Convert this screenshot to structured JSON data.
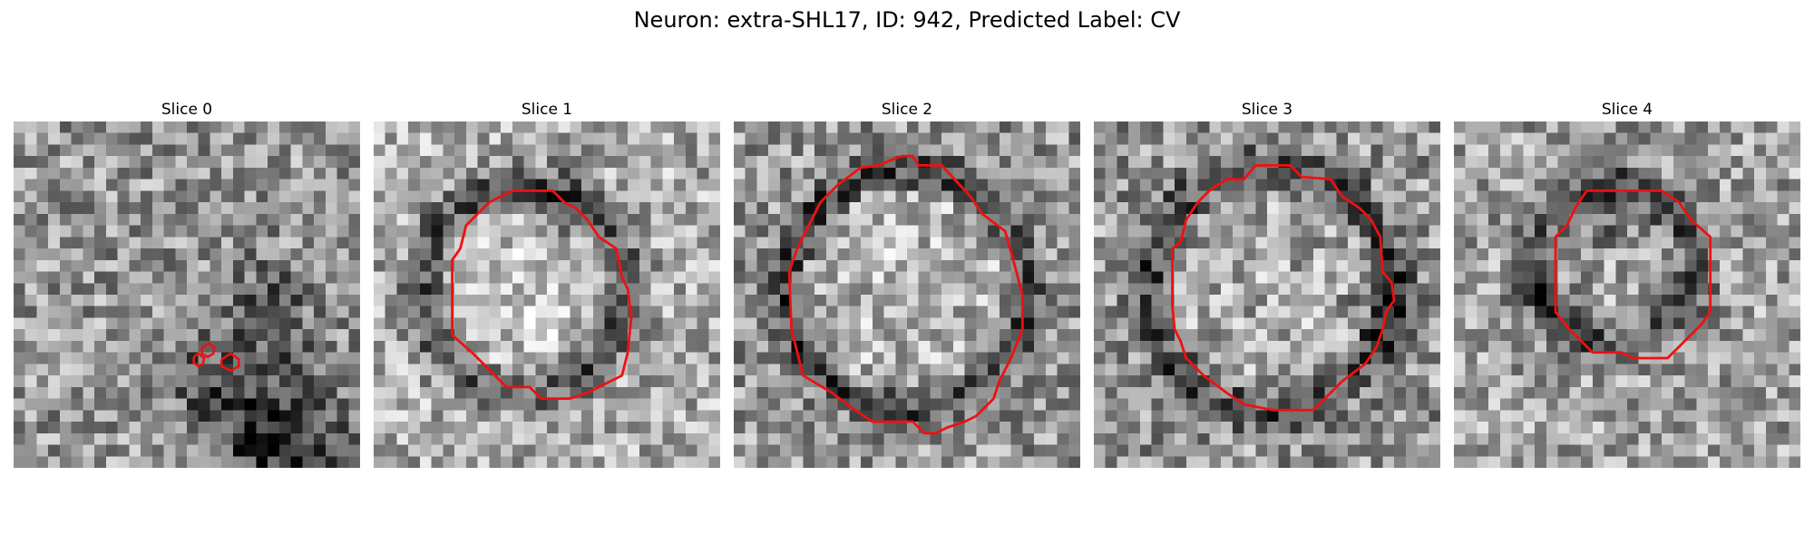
{
  "figure": {
    "title": "Neuron: extra-SHL17, ID: 942, Predicted Label: CV"
  },
  "colors": {
    "contour": "#ee1111",
    "background": "#ffffff"
  },
  "panels": [
    {
      "title": "Slice 0"
    },
    {
      "title": "Slice 1"
    },
    {
      "title": "Slice 2"
    },
    {
      "title": "Slice 3"
    },
    {
      "title": "Slice 4"
    }
  ]
}
